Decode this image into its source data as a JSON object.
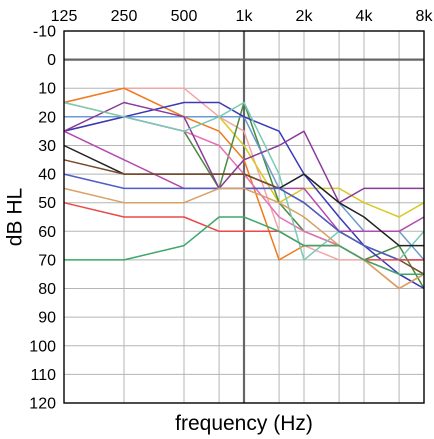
{
  "chart_data": {
    "type": "line",
    "title": "",
    "xlabel": "frequency (Hz)",
    "ylabel": "dB HL",
    "x_scale": "log2",
    "x_ticks": [
      "125",
      "250",
      "500",
      "1k",
      "2k",
      "4k",
      "8k"
    ],
    "x_tick_values": [
      125,
      250,
      500,
      1000,
      2000,
      4000,
      8000
    ],
    "x_minor_values": [
      750,
      1500,
      3000,
      6000
    ],
    "ylim": [
      -10,
      120
    ],
    "y_inverted": true,
    "y_ticks": [
      "-10",
      "0",
      "10",
      "20",
      "30",
      "40",
      "50",
      "60",
      "70",
      "80",
      "90",
      "100",
      "110",
      "120"
    ],
    "y_tick_values": [
      -10,
      0,
      10,
      20,
      30,
      40,
      50,
      60,
      70,
      80,
      90,
      100,
      110,
      120
    ],
    "grid": true,
    "reference_lines": {
      "x": 1000,
      "y": 0
    },
    "x": [
      125,
      250,
      500,
      750,
      1000,
      1500,
      2000,
      3000,
      4000,
      6000,
      8000
    ],
    "series": [
      {
        "color": "#f4a6a6",
        "values": [
          15,
          10,
          10,
          20,
          25,
          60,
          65,
          70,
          70,
          75,
          80
        ]
      },
      {
        "color": "#f07a1d",
        "values": [
          15,
          10,
          20,
          25,
          35,
          70,
          65,
          65,
          70,
          80,
          75
        ]
      },
      {
        "color": "#d9c820",
        "values": [
          15,
          20,
          20,
          20,
          30,
          50,
          45,
          45,
          50,
          55,
          50
        ]
      },
      {
        "color": "#4a8a3c",
        "values": [
          25,
          20,
          25,
          45,
          15,
          50,
          60,
          65,
          70,
          65,
          80
        ]
      },
      {
        "color": "#6c9bd1",
        "values": [
          20,
          20,
          20,
          20,
          20,
          45,
          40,
          50,
          60,
          60,
          70
        ]
      },
      {
        "color": "#e86fb5",
        "values": [
          25,
          20,
          25,
          30,
          40,
          55,
          60,
          65,
          70,
          75,
          75
        ]
      },
      {
        "color": "#3a3ab8",
        "values": [
          25,
          20,
          15,
          15,
          20,
          25,
          40,
          55,
          65,
          75,
          80
        ]
      },
      {
        "color": "#8b3a9a",
        "values": [
          25,
          15,
          20,
          45,
          35,
          30,
          25,
          50,
          45,
          45,
          45
        ]
      },
      {
        "color": "#b14bb0",
        "values": [
          25,
          35,
          45,
          45,
          45,
          45,
          45,
          60,
          60,
          60,
          55
        ]
      },
      {
        "color": "#7ac9b8",
        "values": [
          15,
          20,
          25,
          20,
          15,
          40,
          70,
          60,
          65,
          70,
          60
        ]
      },
      {
        "color": "#222222",
        "values": [
          30,
          40,
          40,
          40,
          40,
          45,
          40,
          50,
          55,
          65,
          65
        ]
      },
      {
        "color": "#7a4a2a",
        "values": [
          35,
          40,
          40,
          40,
          40,
          45,
          50,
          60,
          65,
          70,
          75
        ]
      },
      {
        "color": "#4d5dc8",
        "values": [
          40,
          45,
          45,
          45,
          45,
          45,
          50,
          60,
          65,
          70,
          70
        ]
      },
      {
        "color": "#d9a066",
        "values": [
          45,
          50,
          50,
          45,
          45,
          50,
          55,
          65,
          70,
          80,
          75
        ]
      },
      {
        "color": "#e84a4a",
        "values": [
          50,
          55,
          55,
          60,
          60,
          60,
          65,
          65,
          70,
          70,
          70
        ]
      },
      {
        "color": "#3ca86a",
        "values": [
          70,
          70,
          65,
          55,
          55,
          60,
          65,
          65,
          70,
          75,
          75
        ]
      }
    ]
  }
}
